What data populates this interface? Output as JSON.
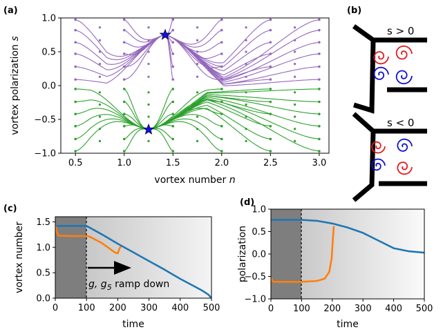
{
  "panels": {
    "a": {
      "label": "(a)",
      "xlabel": "vortex number n",
      "xlabel_plain": "vortex number ",
      "xlabel_var": "n",
      "ylabel_plain": "vortex polarization ",
      "ylabel_var": "s",
      "xticks": [
        "0.5",
        "1.0",
        "1.5",
        "2.0",
        "2.5",
        "3.0"
      ],
      "yticks": [
        "−1.0",
        "−0.5",
        "0.0",
        "0.5",
        "1.0"
      ]
    },
    "b": {
      "label": "(b)",
      "top_text": "s > 0",
      "bottom_text": "s < 0"
    },
    "c": {
      "label": "(c)",
      "xlabel": "time",
      "ylabel": "vortex number",
      "xticks": [
        "0",
        "100",
        "200",
        "300",
        "400",
        "500"
      ],
      "yticks": [
        "0.0",
        "0.5",
        "1.0",
        "1.5"
      ],
      "annotation_g": "g, g",
      "annotation_sub": "5",
      "annotation_rest": " ramp down"
    },
    "d": {
      "label": "(d)",
      "xlabel": "time",
      "ylabel": "polarization",
      "xticks": [
        "0",
        "100",
        "200",
        "300",
        "400",
        "500"
      ],
      "yticks": [
        "−1.0",
        "−0.5",
        "0.0",
        "0.5",
        "1.0"
      ]
    }
  },
  "colors": {
    "purple": "#9467bd",
    "green": "#2ca02c",
    "blue": "#1f77b4",
    "orange": "#ff7f0e",
    "red": "#e41a1c",
    "spiral_blue": "#1010d0",
    "star": "#1010e0"
  },
  "chart_data": [
    {
      "panel": "a",
      "type": "line",
      "description_kind": "phase portrait flow lines",
      "xlim": [
        0.35,
        3.1
      ],
      "ylim": [
        -1.0,
        1.0
      ],
      "fixed_points": [
        {
          "x": 1.42,
          "y": 0.75
        },
        {
          "x": 1.25,
          "y": -0.65
        }
      ],
      "start_points_x": [
        0.5,
        1.0,
        1.5,
        2.0,
        2.5,
        3.0
      ],
      "start_points_y_purple": [
        0.975,
        0.82,
        0.64,
        0.47,
        0.28,
        0.09
      ],
      "start_points_y_green": [
        -0.05,
        -0.24,
        -0.42,
        -0.6,
        -0.79,
        -0.97
      ]
    },
    {
      "panel": "c",
      "type": "line",
      "xlim": [
        0,
        500
      ],
      "ylim": [
        0,
        1.6
      ],
      "ramp_start": 100,
      "series": [
        {
          "color": "blue",
          "x": [
            0,
            25,
            50,
            75,
            100,
            150,
            200,
            250,
            300,
            350,
            400,
            440,
            470,
            490,
            500
          ],
          "y": [
            1.42,
            1.42,
            1.42,
            1.42,
            1.42,
            1.25,
            1.07,
            0.9,
            0.73,
            0.56,
            0.38,
            0.25,
            0.15,
            0.07,
            0.0
          ]
        },
        {
          "color": "orange",
          "x": [
            0,
            5,
            10,
            50,
            100,
            110,
            150,
            190,
            200,
            205,
            210
          ],
          "y": [
            1.43,
            1.3,
            1.23,
            1.22,
            1.22,
            1.21,
            1.08,
            0.9,
            0.88,
            0.97,
            1.02
          ]
        }
      ]
    },
    {
      "panel": "d",
      "type": "line",
      "xlim": [
        0,
        500
      ],
      "ylim": [
        -1.0,
        1.0
      ],
      "ramp_start": 100,
      "series": [
        {
          "color": "blue",
          "x": [
            0,
            50,
            100,
            150,
            200,
            250,
            300,
            350,
            400,
            450,
            500
          ],
          "y": [
            0.76,
            0.76,
            0.76,
            0.74,
            0.68,
            0.59,
            0.47,
            0.3,
            0.13,
            0.06,
            0.03
          ]
        },
        {
          "color": "orange",
          "x": [
            0,
            5,
            10,
            50,
            100,
            150,
            175,
            190,
            198,
            202,
            205
          ],
          "y": [
            -0.52,
            -0.6,
            -0.62,
            -0.62,
            -0.62,
            -0.6,
            -0.55,
            -0.4,
            -0.1,
            0.35,
            0.62
          ]
        }
      ]
    }
  ]
}
